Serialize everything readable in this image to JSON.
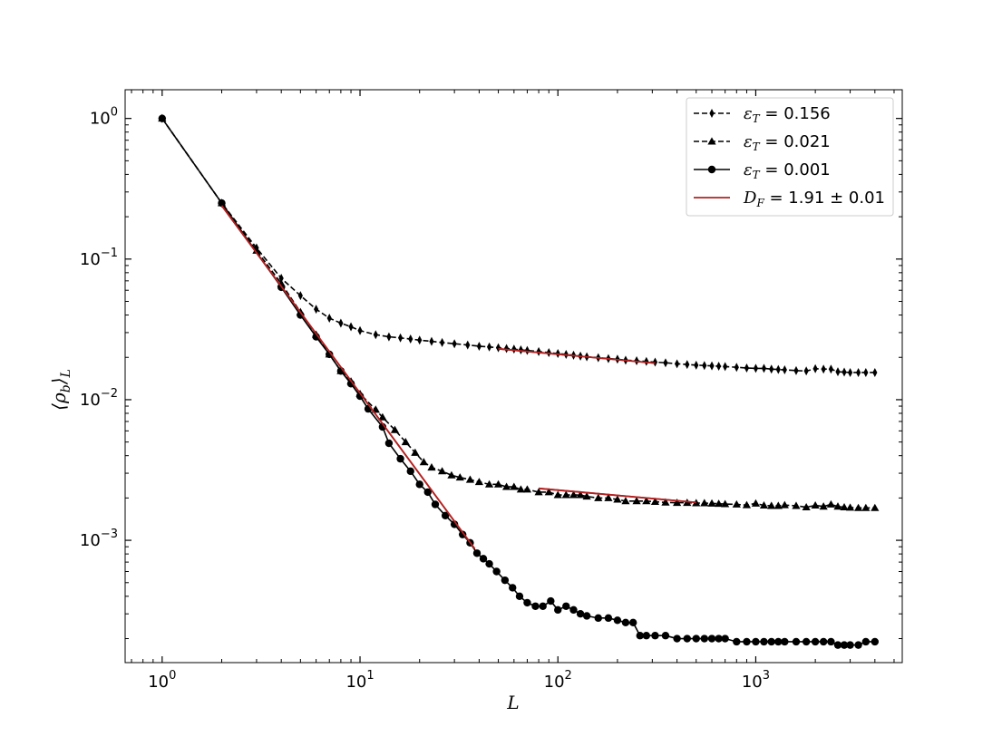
{
  "chart_data": {
    "type": "line",
    "title": "",
    "xlabel": "L",
    "ylabel": "⟨ρ_b⟩_L",
    "xscale": "log",
    "yscale": "log",
    "xlim": [
      0.65,
      5500
    ],
    "ylim": [
      0.000135,
      1.6
    ],
    "grid": false,
    "legend_position": "top-right",
    "x_ticks": [
      {
        "value": 1,
        "base": "10",
        "exp": "0"
      },
      {
        "value": 10,
        "base": "10",
        "exp": "1"
      },
      {
        "value": 100,
        "base": "10",
        "exp": "2"
      },
      {
        "value": 1000,
        "base": "10",
        "exp": "3"
      }
    ],
    "y_ticks": [
      {
        "value": 1,
        "base": "10",
        "exp": "0"
      },
      {
        "value": 0.1,
        "base": "10",
        "exp": "−1"
      },
      {
        "value": 0.01,
        "base": "10",
        "exp": "−2"
      },
      {
        "value": 0.001,
        "base": "10",
        "exp": "−3"
      }
    ],
    "series": [
      {
        "name": "ε_T = 0.156",
        "legend_main": "ε",
        "legend_sub": "T",
        "legend_rest": " = 0.156",
        "color": "#000000",
        "linestyle": "dashed",
        "marker": "diamond",
        "x": [
          1,
          2,
          3,
          4,
          5,
          6,
          7,
          8,
          9,
          10,
          12,
          14,
          16,
          18,
          20,
          23,
          26,
          30,
          35,
          40,
          45,
          50,
          55,
          60,
          65,
          70,
          80,
          90,
          100,
          110,
          120,
          130,
          140,
          160,
          180,
          200,
          220,
          250,
          280,
          310,
          350,
          400,
          450,
          500,
          550,
          600,
          650,
          700,
          800,
          900,
          1000,
          1100,
          1200,
          1300,
          1400,
          1600,
          1800,
          2000,
          2200,
          2400,
          2600,
          2800,
          3000,
          3300,
          3600,
          4000
        ],
        "y": [
          1,
          0.25,
          0.12,
          0.073,
          0.055,
          0.044,
          0.038,
          0.035,
          0.033,
          0.031,
          0.029,
          0.028,
          0.0275,
          0.027,
          0.0265,
          0.026,
          0.0255,
          0.025,
          0.0245,
          0.024,
          0.0237,
          0.0234,
          0.0231,
          0.0229,
          0.0226,
          0.0224,
          0.022,
          0.0216,
          0.0213,
          0.021,
          0.0207,
          0.0204,
          0.0202,
          0.0199,
          0.0196,
          0.0194,
          0.0191,
          0.0189,
          0.0187,
          0.0185,
          0.0183,
          0.018,
          0.0178,
          0.0176,
          0.0175,
          0.0174,
          0.0173,
          0.0172,
          0.017,
          0.0168,
          0.0167,
          0.0167,
          0.0165,
          0.0164,
          0.0163,
          0.0161,
          0.016,
          0.0166,
          0.0165,
          0.0165,
          0.0158,
          0.0157,
          0.0156,
          0.0156,
          0.0156,
          0.0156
        ]
      },
      {
        "name": "ε_T = 0.021",
        "legend_main": "ε",
        "legend_sub": "T",
        "legend_rest": " = 0.021",
        "color": "#000000",
        "linestyle": "dashed",
        "marker": "triangle",
        "x": [
          1,
          2,
          3,
          4,
          5,
          6,
          7,
          8,
          9,
          10,
          12,
          13,
          15,
          17,
          19,
          21,
          23,
          26,
          29,
          32,
          36,
          40,
          45,
          50,
          55,
          60,
          65,
          70,
          80,
          90,
          100,
          110,
          120,
          130,
          140,
          160,
          180,
          200,
          220,
          250,
          280,
          310,
          350,
          400,
          450,
          500,
          550,
          600,
          650,
          700,
          800,
          900,
          1000,
          1100,
          1200,
          1300,
          1400,
          1600,
          1800,
          2000,
          2200,
          2400,
          2600,
          2800,
          3000,
          3300,
          3600,
          4000
        ],
        "y": [
          1,
          0.25,
          0.115,
          0.067,
          0.042,
          0.029,
          0.021,
          0.016,
          0.0135,
          0.011,
          0.0085,
          0.0075,
          0.0061,
          0.005,
          0.0042,
          0.0036,
          0.0033,
          0.0031,
          0.0029,
          0.0028,
          0.0027,
          0.0026,
          0.0025,
          0.0025,
          0.0024,
          0.0024,
          0.0023,
          0.0023,
          0.0022,
          0.0022,
          0.0021,
          0.0021,
          0.0021,
          0.0021,
          0.00205,
          0.002,
          0.002,
          0.00195,
          0.0019,
          0.0019,
          0.0019,
          0.00188,
          0.00186,
          0.00185,
          0.00185,
          0.00184,
          0.00184,
          0.00183,
          0.00182,
          0.00181,
          0.0018,
          0.00178,
          0.00183,
          0.00177,
          0.00176,
          0.00176,
          0.00178,
          0.00176,
          0.00172,
          0.00177,
          0.00174,
          0.0018,
          0.00174,
          0.00172,
          0.00171,
          0.0017,
          0.0017,
          0.0017
        ]
      },
      {
        "name": "ε_T = 0.001",
        "legend_main": "ε",
        "legend_sub": "T",
        "legend_rest": " = 0.001",
        "color": "#000000",
        "linestyle": "solid",
        "marker": "circle",
        "x": [
          1,
          2,
          4,
          5,
          6,
          7,
          8,
          9,
          10,
          11,
          13,
          14,
          16,
          18,
          20,
          22,
          24,
          27,
          30,
          33,
          36,
          39,
          42,
          45,
          49,
          54,
          59,
          64,
          70,
          77,
          84,
          92,
          100,
          110,
          120,
          130,
          140,
          160,
          180,
          200,
          220,
          240,
          260,
          280,
          310,
          350,
          400,
          450,
          500,
          550,
          600,
          650,
          700,
          800,
          900,
          1000,
          1100,
          1200,
          1300,
          1400,
          1600,
          1800,
          2000,
          2200,
          2400,
          2600,
          2800,
          3000,
          3300,
          3600,
          4000
        ],
        "y": [
          1,
          0.25,
          0.063,
          0.04,
          0.028,
          0.021,
          0.016,
          0.013,
          0.0106,
          0.0086,
          0.0064,
          0.0049,
          0.0038,
          0.0031,
          0.0025,
          0.0022,
          0.0018,
          0.0015,
          0.0013,
          0.0011,
          0.00096,
          0.00081,
          0.00074,
          0.00068,
          0.0006,
          0.00052,
          0.00046,
          0.0004,
          0.00036,
          0.00034,
          0.00034,
          0.00037,
          0.00032,
          0.00034,
          0.00032,
          0.0003,
          0.00029,
          0.00028,
          0.00028,
          0.00027,
          0.00026,
          0.00026,
          0.00021,
          0.00021,
          0.00021,
          0.00021,
          0.0002,
          0.0002,
          0.0002,
          0.0002,
          0.0002,
          0.0002,
          0.0002,
          0.00019,
          0.00019,
          0.00019,
          0.00019,
          0.00019,
          0.00019,
          0.00019,
          0.00019,
          0.00019,
          0.00019,
          0.00019,
          0.00019,
          0.00018,
          0.00018,
          0.00018,
          0.00018,
          0.00019,
          0.00019
        ]
      }
    ],
    "fit_lines": [
      {
        "name": "fit-initial",
        "color": "#b22222",
        "x": [
          2,
          38
        ],
        "y": [
          0.24,
          0.00087
        ]
      },
      {
        "name": "fit-0.156",
        "color": "#b22222",
        "x": [
          50,
          310
        ],
        "y": [
          0.023,
          0.0182
        ]
      },
      {
        "name": "fit-0.021",
        "color": "#b22222",
        "x": [
          80,
          500
        ],
        "y": [
          0.00234,
          0.00186
        ]
      }
    ],
    "fit_legend": {
      "main": "D",
      "sub": "F",
      "rest": " = 1.91 ± 0.01",
      "color": "#b22222"
    }
  }
}
